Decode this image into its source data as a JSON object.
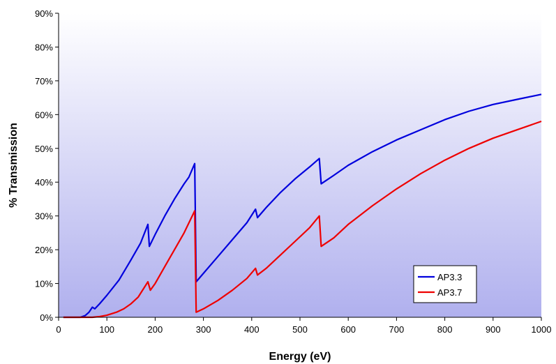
{
  "chart_data": {
    "type": "line",
    "title": "",
    "xlabel": "Energy (eV)",
    "ylabel": "% Transmission",
    "xlim": [
      0,
      1000
    ],
    "ylim": [
      0,
      90
    ],
    "xticks": [
      0,
      100,
      200,
      300,
      400,
      500,
      600,
      700,
      800,
      900,
      1000
    ],
    "yticks": [
      0,
      10,
      20,
      30,
      40,
      50,
      60,
      70,
      80,
      90
    ],
    "xtick_labels": [
      "0",
      "100",
      "200",
      "300",
      "400",
      "500",
      "600",
      "700",
      "800",
      "900",
      "1000"
    ],
    "ytick_labels": [
      "0%",
      "10%",
      "20%",
      "30%",
      "40%",
      "50%",
      "60%",
      "70%",
      "80%",
      "90%"
    ],
    "grid": false,
    "legend_position": "bottom-right",
    "series": [
      {
        "name": "AP3.3",
        "color": "#0000dd",
        "points": [
          [
            10,
            0
          ],
          [
            45,
            0
          ],
          [
            55,
            0.5
          ],
          [
            63,
            1.5
          ],
          [
            70,
            3
          ],
          [
            75,
            2.5
          ],
          [
            85,
            4
          ],
          [
            100,
            6.5
          ],
          [
            125,
            11
          ],
          [
            150,
            17
          ],
          [
            170,
            22
          ],
          [
            185,
            27.5
          ],
          [
            188,
            21
          ],
          [
            200,
            24.5
          ],
          [
            220,
            30
          ],
          [
            240,
            35
          ],
          [
            260,
            39.5
          ],
          [
            270,
            41.5
          ],
          [
            282,
            45.5
          ],
          [
            285,
            10.5
          ],
          [
            300,
            13
          ],
          [
            330,
            18
          ],
          [
            360,
            23
          ],
          [
            390,
            28
          ],
          [
            408,
            32
          ],
          [
            412,
            29.5
          ],
          [
            430,
            32.5
          ],
          [
            460,
            37
          ],
          [
            490,
            41
          ],
          [
            520,
            44.5
          ],
          [
            540,
            47
          ],
          [
            544,
            39.5
          ],
          [
            570,
            42
          ],
          [
            600,
            45
          ],
          [
            650,
            49
          ],
          [
            700,
            52.5
          ],
          [
            750,
            55.5
          ],
          [
            800,
            58.5
          ],
          [
            850,
            61
          ],
          [
            900,
            63
          ],
          [
            950,
            64.5
          ],
          [
            1000,
            66
          ]
        ]
      },
      {
        "name": "AP3.7",
        "color": "#ee0000",
        "points": [
          [
            10,
            0
          ],
          [
            70,
            0
          ],
          [
            85,
            0.2
          ],
          [
            100,
            0.6
          ],
          [
            120,
            1.5
          ],
          [
            135,
            2.5
          ],
          [
            150,
            4
          ],
          [
            165,
            6
          ],
          [
            185,
            10.5
          ],
          [
            190,
            8
          ],
          [
            200,
            10
          ],
          [
            220,
            15
          ],
          [
            240,
            20
          ],
          [
            260,
            25
          ],
          [
            282,
            31.5
          ],
          [
            285,
            1.5
          ],
          [
            300,
            2.5
          ],
          [
            330,
            5
          ],
          [
            360,
            8
          ],
          [
            390,
            11.5
          ],
          [
            408,
            14.5
          ],
          [
            412,
            12.5
          ],
          [
            430,
            14.5
          ],
          [
            460,
            18.5
          ],
          [
            490,
            22.5
          ],
          [
            520,
            26.5
          ],
          [
            540,
            30
          ],
          [
            544,
            21
          ],
          [
            570,
            23.5
          ],
          [
            600,
            27.5
          ],
          [
            650,
            33
          ],
          [
            700,
            38
          ],
          [
            750,
            42.5
          ],
          [
            800,
            46.5
          ],
          [
            850,
            50
          ],
          [
            900,
            53
          ],
          [
            950,
            55.5
          ],
          [
            1000,
            58
          ]
        ]
      }
    ]
  }
}
